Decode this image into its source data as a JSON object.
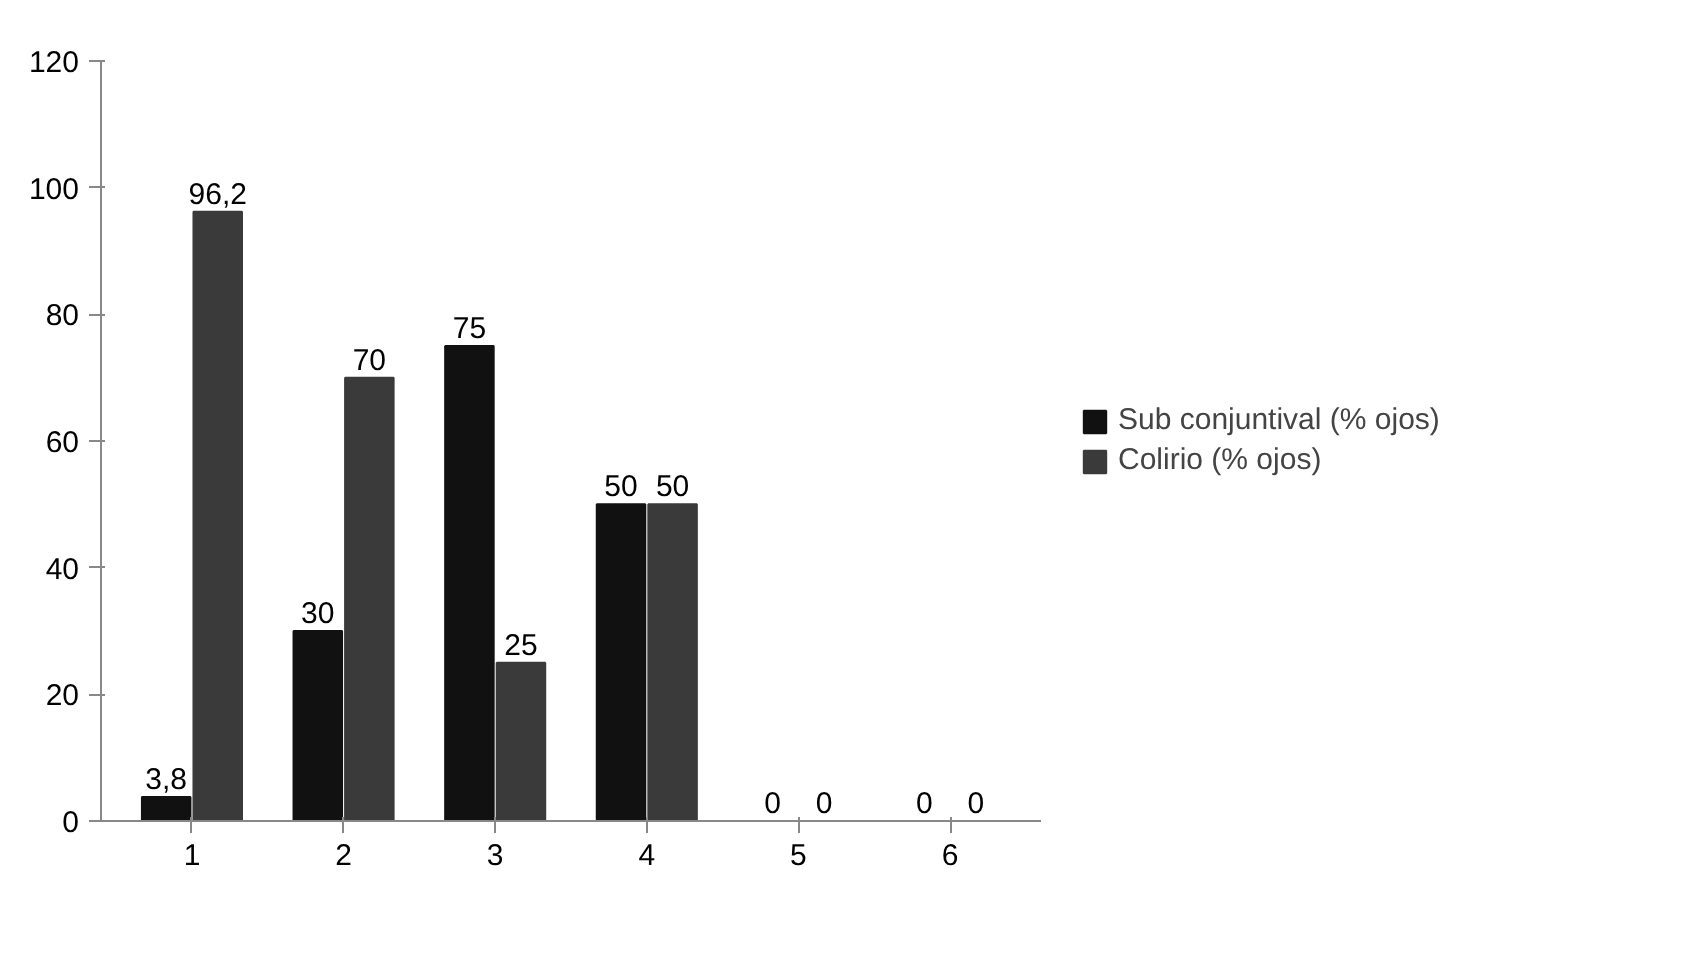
{
  "chart_data": {
    "type": "bar",
    "categories": [
      "1",
      "2",
      "3",
      "4",
      "5",
      "6"
    ],
    "series": [
      {
        "name": "Sub conjuntival (% ojos)",
        "color": "#111111",
        "values": [
          3.8,
          30,
          75,
          50,
          0,
          0
        ],
        "value_labels": [
          "3,8",
          "30",
          "75",
          "50",
          "0",
          "0"
        ]
      },
      {
        "name": "Colirio (% ojos)",
        "color": "#3a3a3a",
        "values": [
          96.2,
          70,
          25,
          50,
          0,
          0
        ],
        "value_labels": [
          "96,2",
          "70",
          "25",
          "50",
          "0",
          "0"
        ]
      }
    ],
    "ylim": [
      0,
      120
    ],
    "yticks": [
      0,
      20,
      40,
      60,
      80,
      100,
      120
    ],
    "grid": false,
    "legend": "right"
  }
}
